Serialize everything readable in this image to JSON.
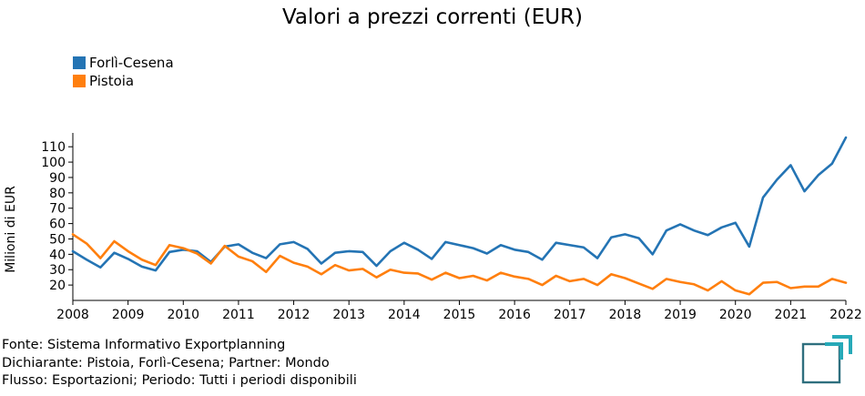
{
  "chart_data": {
    "type": "line",
    "title": "Valori a prezzi correnti (EUR)",
    "xlabel": "",
    "ylabel": "Milioni di EUR",
    "xlim": [
      2008,
      2022
    ],
    "ylim": [
      10,
      119
    ],
    "x_ticks": [
      "2008",
      "2009",
      "2010",
      "2011",
      "2012",
      "2013",
      "2014",
      "2015",
      "2016",
      "2017",
      "2018",
      "2019",
      "2020",
      "2021",
      "2022"
    ],
    "y_ticks": [
      20,
      30,
      40,
      50,
      60,
      70,
      80,
      90,
      100,
      110
    ],
    "grid": false,
    "legend_position": "top-left",
    "x": [
      2008.0,
      2008.25,
      2008.5,
      2008.75,
      2009.0,
      2009.25,
      2009.5,
      2009.75,
      2010.0,
      2010.25,
      2010.5,
      2010.75,
      2011.0,
      2011.25,
      2011.5,
      2011.75,
      2012.0,
      2012.25,
      2012.5,
      2012.75,
      2013.0,
      2013.25,
      2013.5,
      2013.75,
      2014.0,
      2014.25,
      2014.5,
      2014.75,
      2015.0,
      2015.25,
      2015.5,
      2015.75,
      2016.0,
      2016.25,
      2016.5,
      2016.75,
      2017.0,
      2017.25,
      2017.5,
      2017.75,
      2018.0,
      2018.25,
      2018.5,
      2018.75,
      2019.0,
      2019.25,
      2019.5,
      2019.75,
      2020.0,
      2020.25,
      2020.5,
      2020.75,
      2021.0,
      2021.25,
      2021.5,
      2021.75,
      2022.0
    ],
    "series": [
      {
        "name": "Forlì-Cesena",
        "color": "#2474b4",
        "values": [
          42,
          36.5,
          31.5,
          41,
          37,
          32,
          29.5,
          41.5,
          43,
          42,
          35,
          45,
          46.5,
          41,
          37.5,
          46.5,
          48,
          43.5,
          34,
          41,
          42,
          41.5,
          32.5,
          42,
          47.5,
          43,
          37,
          48,
          46,
          44,
          40.5,
          46,
          43,
          41.5,
          36.5,
          47.5,
          46,
          44.5,
          37.5,
          51,
          53,
          50.5,
          40,
          55.5,
          59.5,
          55.5,
          52.5,
          57.5,
          60.5,
          45,
          77,
          88.5,
          98,
          81,
          91.5,
          99,
          116
        ]
      },
      {
        "name": "Pistoia",
        "color": "#ff7f0e",
        "values": [
          53,
          47,
          37.5,
          48.5,
          42,
          36.5,
          33,
          46,
          44,
          40.5,
          34,
          45.5,
          38.5,
          35.5,
          28.5,
          39,
          34.5,
          32,
          27,
          33,
          29.5,
          30.5,
          25,
          30,
          28,
          27.5,
          23.5,
          28,
          24.5,
          26,
          23,
          28,
          25.5,
          24,
          20,
          26,
          22.5,
          24,
          20,
          27,
          24.5,
          21,
          17.5,
          24,
          22,
          20.5,
          16.5,
          22.5,
          16.5,
          14,
          21.5,
          22,
          18,
          19,
          19,
          24,
          21.5
        ]
      }
    ]
  },
  "footer": {
    "line1": "Fonte: Sistema Informativo Exportplanning",
    "line2": "Dichiarante: Pistoia, Forlì-Cesena; Partner: Mondo",
    "line3": "Flusso: Esportazioni; Periodo: Tutti i periodi disponibili"
  },
  "logo": {
    "icon": "exportplanning-logo-icon",
    "color_frame": "#2f6f7e",
    "color_accent": "#26a9b8"
  }
}
